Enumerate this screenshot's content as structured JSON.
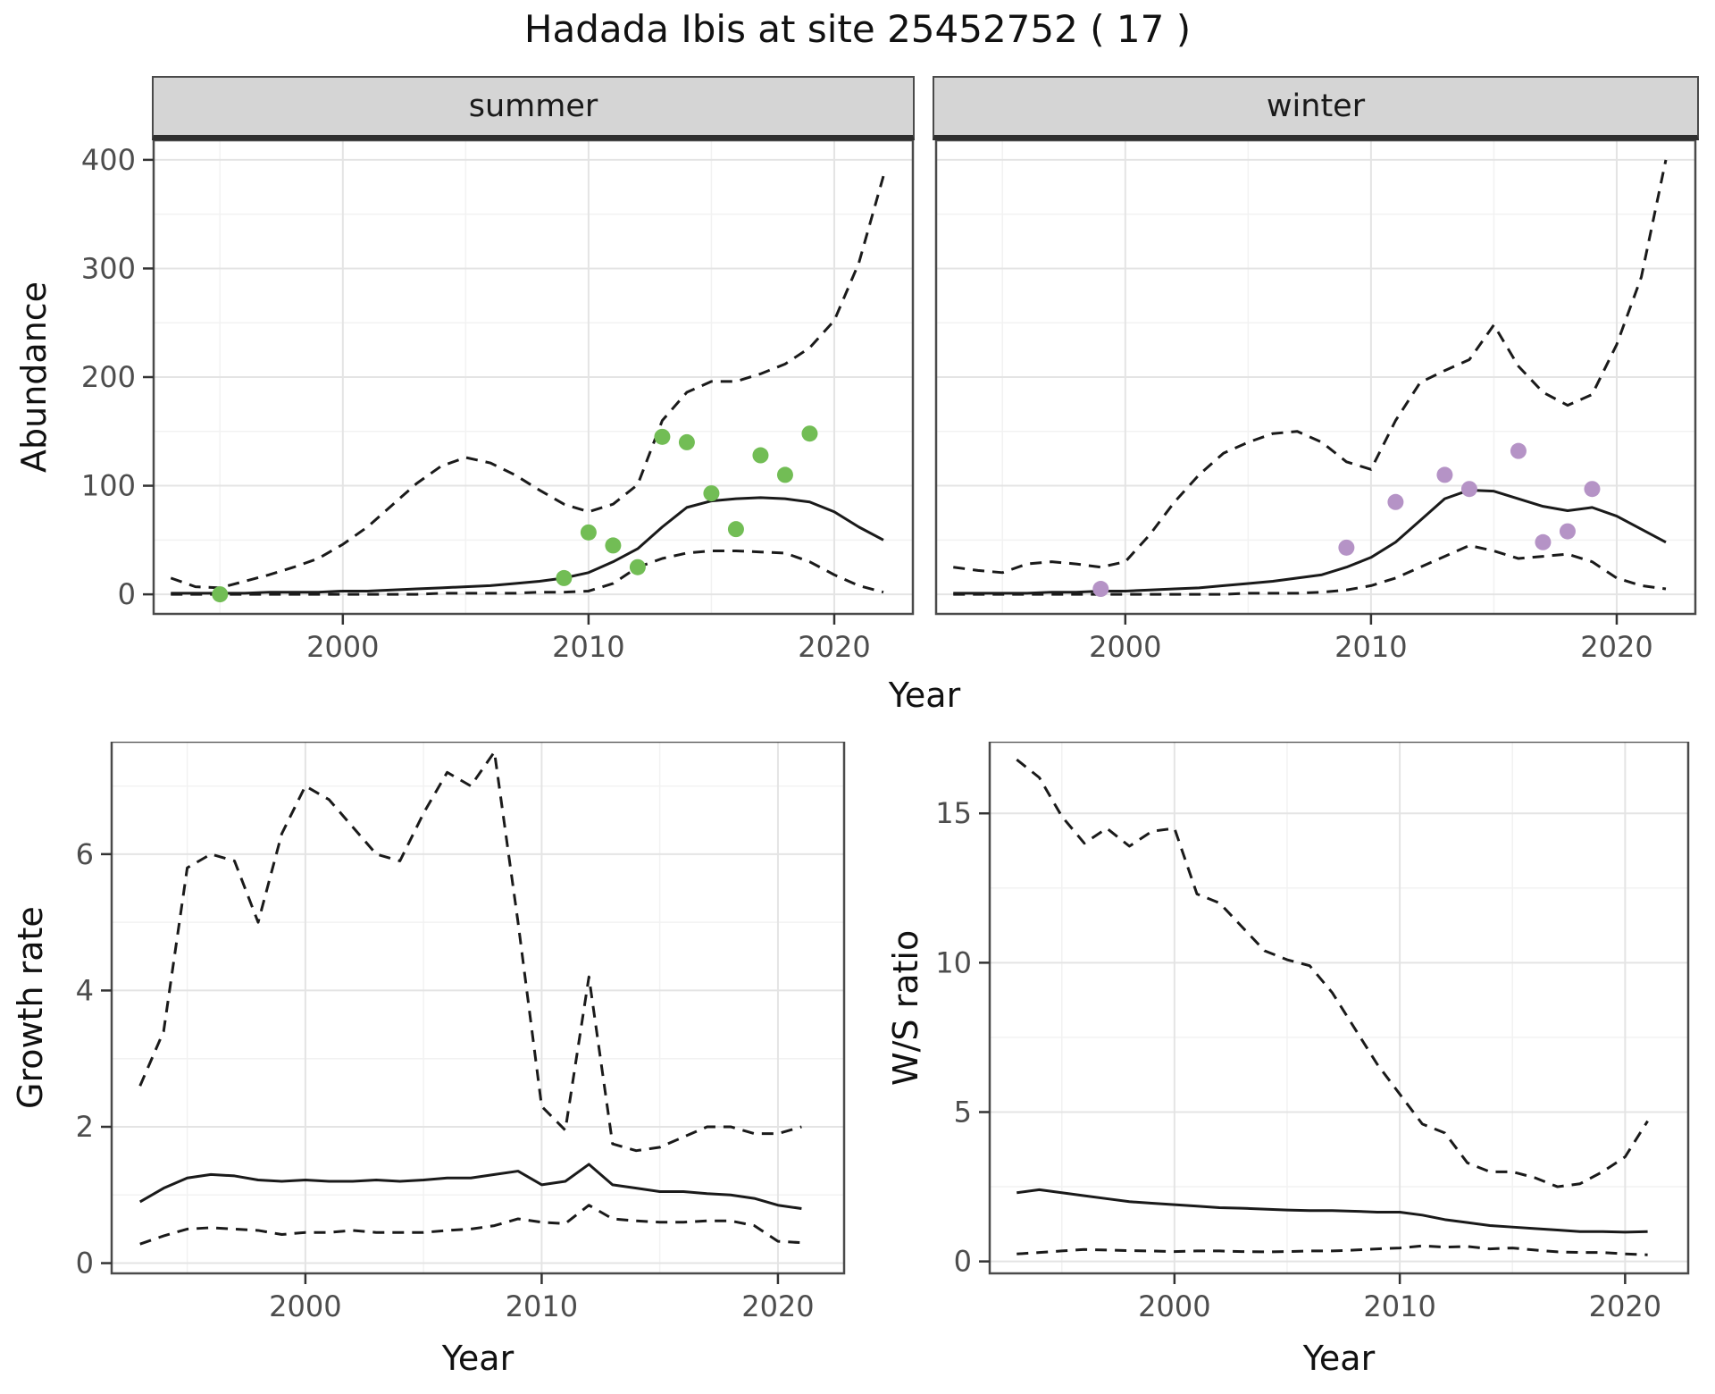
{
  "title": "Hadada Ibis at site 25452752 ( 17 )",
  "theme": {
    "panel_bg": "#ffffff",
    "grid_major": "#e4e4e4",
    "grid_minor": "#f2f2f2",
    "panel_border": "#4a4a4a",
    "line": "#1a1a1a",
    "tick": "#333333",
    "tick_label": "#4d4d4d",
    "strip_bg": "#d5d5d5",
    "summer_point": "#72bd55",
    "winter_point": "#b593c6"
  },
  "chart_data": [
    {
      "id": "summer",
      "type": "line",
      "strip": "summer",
      "xlabel": "Year",
      "ylabel": "Abundance",
      "xlim": [
        1992.3,
        2023.2
      ],
      "ylim": [
        -18,
        418
      ],
      "xticks": [
        2000,
        2010,
        2020
      ],
      "yticks": [
        0,
        100,
        200,
        300,
        400
      ],
      "grid": true,
      "years": [
        1993,
        1994,
        1995,
        1996,
        1997,
        1998,
        1999,
        2000,
        2001,
        2002,
        2003,
        2004,
        2005,
        2006,
        2007,
        2008,
        2009,
        2010,
        2011,
        2012,
        2013,
        2014,
        2015,
        2016,
        2017,
        2018,
        2019,
        2020,
        2021,
        2022
      ],
      "series": [
        {
          "name": "mean",
          "style": "solid",
          "values": [
            1,
            1,
            1,
            1,
            2,
            2,
            2,
            3,
            3,
            4,
            5,
            6,
            7,
            8,
            10,
            12,
            15,
            20,
            30,
            42,
            62,
            80,
            86,
            88,
            89,
            88,
            85,
            76,
            62,
            50
          ]
        },
        {
          "name": "upper_ci",
          "style": "dashed",
          "values": [
            15,
            7,
            6,
            12,
            18,
            25,
            33,
            46,
            62,
            82,
            102,
            118,
            126,
            121,
            110,
            96,
            83,
            76,
            83,
            101,
            160,
            186,
            196,
            196,
            203,
            212,
            227,
            252,
            305,
            385
          ]
        },
        {
          "name": "lower_ci",
          "style": "dashed",
          "values": [
            0,
            0,
            0,
            0,
            0,
            0,
            0,
            0,
            0,
            0,
            0,
            1,
            1,
            1,
            1,
            2,
            2,
            3,
            10,
            25,
            33,
            38,
            40,
            40,
            39,
            38,
            30,
            18,
            8,
            2
          ]
        }
      ],
      "points": {
        "color": "#72bd55",
        "x": [
          1995,
          2009,
          2010,
          2011,
          2012,
          2013,
          2014,
          2015,
          2016,
          2017,
          2018,
          2019
        ],
        "y": [
          0,
          15,
          57,
          45,
          25,
          145,
          140,
          93,
          60,
          128,
          110,
          148
        ]
      }
    },
    {
      "id": "winter",
      "type": "line",
      "strip": "winter",
      "xlabel": "Year",
      "ylabel": "Abundance",
      "xlim": [
        1992.3,
        2023.2
      ],
      "ylim": [
        -18,
        418
      ],
      "xticks": [
        2000,
        2010,
        2020
      ],
      "yticks": [
        0,
        100,
        200,
        300,
        400
      ],
      "grid": true,
      "years": [
        1993,
        1994,
        1995,
        1996,
        1997,
        1998,
        1999,
        2000,
        2001,
        2002,
        2003,
        2004,
        2005,
        2006,
        2007,
        2008,
        2009,
        2010,
        2011,
        2012,
        2013,
        2014,
        2015,
        2016,
        2017,
        2018,
        2019,
        2020,
        2021,
        2022
      ],
      "series": [
        {
          "name": "mean",
          "style": "solid",
          "values": [
            1,
            1,
            1,
            1,
            2,
            2,
            3,
            3,
            4,
            5,
            6,
            8,
            10,
            12,
            15,
            18,
            25,
            34,
            48,
            68,
            88,
            96,
            95,
            88,
            81,
            77,
            80,
            72,
            60,
            48
          ]
        },
        {
          "name": "upper_ci",
          "style": "dashed",
          "values": [
            25,
            22,
            20,
            28,
            30,
            28,
            25,
            30,
            55,
            85,
            110,
            130,
            140,
            148,
            150,
            140,
            122,
            115,
            160,
            195,
            206,
            216,
            248,
            210,
            186,
            174,
            184,
            230,
            292,
            400
          ]
        },
        {
          "name": "lower_ci",
          "style": "dashed",
          "values": [
            0,
            0,
            0,
            0,
            0,
            0,
            0,
            0,
            0,
            0,
            0,
            0,
            1,
            1,
            1,
            2,
            4,
            8,
            15,
            25,
            35,
            45,
            40,
            33,
            35,
            37,
            30,
            15,
            8,
            5
          ]
        }
      ],
      "points": {
        "color": "#b593c6",
        "x": [
          1999,
          2009,
          2011,
          2013,
          2014,
          2016,
          2017,
          2018,
          2019
        ],
        "y": [
          5,
          43,
          85,
          110,
          97,
          132,
          48,
          58,
          97
        ]
      }
    },
    {
      "id": "growth_rate",
      "type": "line",
      "strip": "",
      "xlabel": "Year",
      "ylabel": "Growth rate",
      "xlim": [
        1991.8,
        2022.8
      ],
      "ylim": [
        -0.15,
        7.65
      ],
      "xticks": [
        2000,
        2010,
        2020
      ],
      "yticks": [
        0,
        2,
        4,
        6
      ],
      "grid": true,
      "years": [
        1993,
        1994,
        1995,
        1996,
        1997,
        1998,
        1999,
        2000,
        2001,
        2002,
        2003,
        2004,
        2005,
        2006,
        2007,
        2008,
        2009,
        2010,
        2011,
        2012,
        2013,
        2014,
        2015,
        2016,
        2017,
        2018,
        2019,
        2020,
        2021
      ],
      "series": [
        {
          "name": "mean",
          "style": "solid",
          "values": [
            0.9,
            1.1,
            1.25,
            1.3,
            1.28,
            1.22,
            1.2,
            1.22,
            1.2,
            1.2,
            1.22,
            1.2,
            1.22,
            1.25,
            1.25,
            1.3,
            1.35,
            1.15,
            1.2,
            1.45,
            1.15,
            1.1,
            1.05,
            1.05,
            1.02,
            1.0,
            0.95,
            0.85,
            0.8
          ]
        },
        {
          "name": "upper_ci",
          "style": "dashed",
          "values": [
            2.6,
            3.4,
            5.8,
            6.0,
            5.9,
            5.0,
            6.3,
            7.0,
            6.8,
            6.4,
            6.0,
            5.9,
            6.6,
            7.2,
            7.0,
            7.5,
            5.0,
            2.3,
            1.95,
            4.2,
            1.75,
            1.65,
            1.7,
            1.85,
            2.0,
            2.0,
            1.9,
            1.9,
            2.0
          ]
        },
        {
          "name": "lower_ci",
          "style": "dashed",
          "values": [
            0.28,
            0.4,
            0.5,
            0.52,
            0.5,
            0.48,
            0.42,
            0.45,
            0.45,
            0.48,
            0.45,
            0.45,
            0.45,
            0.48,
            0.5,
            0.55,
            0.65,
            0.6,
            0.58,
            0.85,
            0.65,
            0.62,
            0.6,
            0.6,
            0.62,
            0.62,
            0.55,
            0.32,
            0.3
          ]
        }
      ]
    },
    {
      "id": "ws_ratio",
      "type": "line",
      "strip": "",
      "xlabel": "Year",
      "ylabel": "W/S ratio",
      "xlim": [
        1991.8,
        2022.8
      ],
      "ylim": [
        -0.4,
        17.4
      ],
      "xticks": [
        2000,
        2010,
        2020
      ],
      "yticks": [
        0,
        5,
        10,
        15
      ],
      "grid": true,
      "years": [
        1993,
        1994,
        1995,
        1996,
        1997,
        1998,
        1999,
        2000,
        2001,
        2002,
        2003,
        2004,
        2005,
        2006,
        2007,
        2008,
        2009,
        2010,
        2011,
        2012,
        2013,
        2014,
        2015,
        2016,
        2017,
        2018,
        2019,
        2020,
        2021
      ],
      "series": [
        {
          "name": "mean",
          "style": "solid",
          "values": [
            2.3,
            2.4,
            2.3,
            2.2,
            2.1,
            2.0,
            1.95,
            1.9,
            1.85,
            1.8,
            1.78,
            1.75,
            1.72,
            1.7,
            1.7,
            1.68,
            1.65,
            1.65,
            1.55,
            1.4,
            1.3,
            1.2,
            1.15,
            1.1,
            1.05,
            1.0,
            1.0,
            0.98,
            1.0
          ]
        },
        {
          "name": "upper_ci",
          "style": "dashed",
          "values": [
            16.8,
            16.2,
            14.9,
            14.0,
            14.5,
            13.9,
            14.4,
            14.5,
            12.3,
            12.0,
            11.2,
            10.4,
            10.1,
            9.9,
            9.0,
            7.8,
            6.6,
            5.6,
            4.6,
            4.3,
            3.3,
            3.0,
            3.0,
            2.8,
            2.5,
            2.6,
            3.0,
            3.5,
            4.7
          ]
        },
        {
          "name": "lower_ci",
          "style": "dashed",
          "values": [
            0.25,
            0.3,
            0.35,
            0.4,
            0.38,
            0.36,
            0.35,
            0.33,
            0.35,
            0.35,
            0.33,
            0.32,
            0.33,
            0.35,
            0.35,
            0.38,
            0.42,
            0.45,
            0.52,
            0.48,
            0.5,
            0.42,
            0.45,
            0.38,
            0.32,
            0.3,
            0.3,
            0.25,
            0.22
          ]
        }
      ]
    }
  ]
}
